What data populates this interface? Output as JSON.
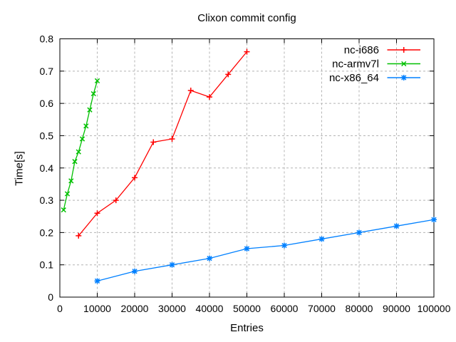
{
  "chart_data": {
    "type": "line",
    "title": "Clixon commit config",
    "xlabel": "Entries",
    "ylabel": "Time[s]",
    "xlim": [
      0,
      100000
    ],
    "ylim": [
      0,
      0.8
    ],
    "x_ticks": [
      0,
      10000,
      20000,
      30000,
      40000,
      50000,
      60000,
      70000,
      80000,
      90000,
      100000
    ],
    "y_ticks": [
      0,
      0.1,
      0.2,
      0.3,
      0.4,
      0.5,
      0.6,
      0.7,
      0.8
    ],
    "grid": true,
    "legend_position": "top-right-inside",
    "series": [
      {
        "name": "nc-i686",
        "color": "#ff0000",
        "marker": "plus",
        "x": [
          5000,
          10000,
          15000,
          20000,
          25000,
          30000,
          35000,
          40000,
          45000,
          50000
        ],
        "y": [
          0.19,
          0.26,
          0.3,
          0.37,
          0.48,
          0.49,
          0.64,
          0.62,
          0.69,
          0.76
        ]
      },
      {
        "name": "nc-armv7l",
        "color": "#00c000",
        "marker": "cross",
        "x": [
          1000,
          2000,
          3000,
          4000,
          5000,
          6000,
          7000,
          8000,
          9000,
          10000
        ],
        "y": [
          0.27,
          0.32,
          0.36,
          0.42,
          0.45,
          0.49,
          0.53,
          0.58,
          0.63,
          0.67
        ]
      },
      {
        "name": "nc-x86_64",
        "color": "#0080ff",
        "marker": "asterisk",
        "x": [
          10000,
          20000,
          30000,
          40000,
          50000,
          60000,
          70000,
          80000,
          90000,
          100000
        ],
        "y": [
          0.05,
          0.08,
          0.1,
          0.12,
          0.15,
          0.16,
          0.18,
          0.2,
          0.22,
          0.24
        ]
      }
    ]
  },
  "style": {
    "grid_color": "#b4b4b4",
    "axis_color": "#000000",
    "text_color": "#000000"
  }
}
